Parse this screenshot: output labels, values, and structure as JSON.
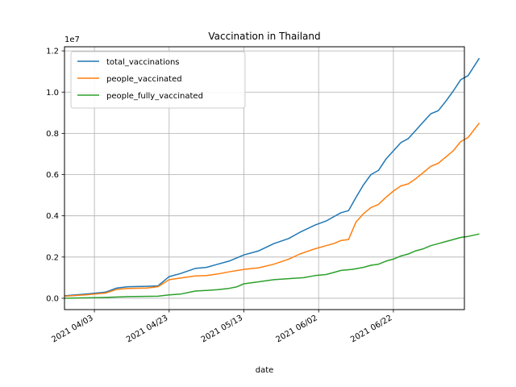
{
  "chart_data": {
    "type": "line",
    "title": "Vaccination in Thailand",
    "xlabel": "date",
    "ylabel": "",
    "y_scale_label": "1e7",
    "x_tick_labels": [
      "2021 04/03",
      "2021 04/23",
      "2021 05/13",
      "2021 06/02",
      "2021 06/22"
    ],
    "y_tick_labels": [
      "0.0",
      "0.2",
      "0.4",
      "0.6",
      "0.8",
      "1.0",
      "1.2"
    ],
    "y_ticks": [
      0,
      2000000,
      4000000,
      6000000,
      8000000,
      10000000,
      12000000
    ],
    "ylim": [
      -550000,
      12200000
    ],
    "xlim": [
      "2021-03-26",
      "2021-07-11"
    ],
    "grid": true,
    "legend_position": "top-left",
    "colors": {
      "total_vaccinations": "#1f77b4",
      "people_vaccinated": "#ff7f0e",
      "people_fully_vaccinated": "#2ca02c"
    },
    "series": [
      {
        "name": "total_vaccinations",
        "points": [
          [
            "2021-03-26",
            120000
          ],
          [
            "2021-04-01",
            210000
          ],
          [
            "2021-04-06",
            300000
          ],
          [
            "2021-04-09",
            500000
          ],
          [
            "2021-04-12",
            560000
          ],
          [
            "2021-04-17",
            580000
          ],
          [
            "2021-04-20",
            600000
          ],
          [
            "2021-04-23",
            1050000
          ],
          [
            "2021-04-26",
            1200000
          ],
          [
            "2021-04-30",
            1450000
          ],
          [
            "2021-05-03",
            1500000
          ],
          [
            "2021-05-06",
            1650000
          ],
          [
            "2021-05-09",
            1800000
          ],
          [
            "2021-05-13",
            2100000
          ],
          [
            "2021-05-17",
            2300000
          ],
          [
            "2021-05-21",
            2650000
          ],
          [
            "2021-05-25",
            2900000
          ],
          [
            "2021-05-28",
            3200000
          ],
          [
            "2021-06-01",
            3550000
          ],
          [
            "2021-06-04",
            3750000
          ],
          [
            "2021-06-06",
            3950000
          ],
          [
            "2021-06-08",
            4150000
          ],
          [
            "2021-06-10",
            4250000
          ],
          [
            "2021-06-12",
            4900000
          ],
          [
            "2021-06-14",
            5500000
          ],
          [
            "2021-06-16",
            6000000
          ],
          [
            "2021-06-18",
            6200000
          ],
          [
            "2021-06-20",
            6750000
          ],
          [
            "2021-06-22",
            7150000
          ],
          [
            "2021-06-24",
            7550000
          ],
          [
            "2021-06-26",
            7750000
          ],
          [
            "2021-06-28",
            8150000
          ],
          [
            "2021-06-30",
            8550000
          ],
          [
            "2021-07-02",
            8950000
          ],
          [
            "2021-07-04",
            9100000
          ],
          [
            "2021-07-06",
            9550000
          ],
          [
            "2021-07-08",
            10050000
          ],
          [
            "2021-07-10",
            10600000
          ],
          [
            "2021-07-12",
            10800000
          ],
          [
            "2021-07-15",
            11650000
          ]
        ]
      },
      {
        "name": "people_vaccinated",
        "points": [
          [
            "2021-03-26",
            100000
          ],
          [
            "2021-04-01",
            170000
          ],
          [
            "2021-04-06",
            250000
          ],
          [
            "2021-04-09",
            430000
          ],
          [
            "2021-04-12",
            480000
          ],
          [
            "2021-04-17",
            500000
          ],
          [
            "2021-04-20",
            560000
          ],
          [
            "2021-04-23",
            900000
          ],
          [
            "2021-04-26",
            980000
          ],
          [
            "2021-04-30",
            1080000
          ],
          [
            "2021-05-03",
            1100000
          ],
          [
            "2021-05-06",
            1180000
          ],
          [
            "2021-05-09",
            1280000
          ],
          [
            "2021-05-13",
            1400000
          ],
          [
            "2021-05-17",
            1480000
          ],
          [
            "2021-05-21",
            1650000
          ],
          [
            "2021-05-25",
            1900000
          ],
          [
            "2021-05-28",
            2150000
          ],
          [
            "2021-06-01",
            2400000
          ],
          [
            "2021-06-04",
            2550000
          ],
          [
            "2021-06-06",
            2650000
          ],
          [
            "2021-06-08",
            2800000
          ],
          [
            "2021-06-10",
            2850000
          ],
          [
            "2021-06-12",
            3700000
          ],
          [
            "2021-06-14",
            4100000
          ],
          [
            "2021-06-16",
            4400000
          ],
          [
            "2021-06-18",
            4550000
          ],
          [
            "2021-06-20",
            4900000
          ],
          [
            "2021-06-22",
            5200000
          ],
          [
            "2021-06-24",
            5450000
          ],
          [
            "2021-06-26",
            5550000
          ],
          [
            "2021-06-28",
            5800000
          ],
          [
            "2021-06-30",
            6100000
          ],
          [
            "2021-07-02",
            6400000
          ],
          [
            "2021-07-04",
            6550000
          ],
          [
            "2021-07-06",
            6850000
          ],
          [
            "2021-07-08",
            7150000
          ],
          [
            "2021-07-10",
            7600000
          ],
          [
            "2021-07-12",
            7800000
          ],
          [
            "2021-07-15",
            8500000
          ]
        ]
      },
      {
        "name": "people_fully_vaccinated",
        "points": [
          [
            "2021-03-26",
            0
          ],
          [
            "2021-04-06",
            40000
          ],
          [
            "2021-04-12",
            80000
          ],
          [
            "2021-04-20",
            100000
          ],
          [
            "2021-04-23",
            160000
          ],
          [
            "2021-04-26",
            200000
          ],
          [
            "2021-04-30",
            350000
          ],
          [
            "2021-05-03",
            380000
          ],
          [
            "2021-05-06",
            420000
          ],
          [
            "2021-05-09",
            480000
          ],
          [
            "2021-05-11",
            550000
          ],
          [
            "2021-05-13",
            700000
          ],
          [
            "2021-05-17",
            800000
          ],
          [
            "2021-05-21",
            900000
          ],
          [
            "2021-05-25",
            950000
          ],
          [
            "2021-05-29",
            1000000
          ],
          [
            "2021-06-01",
            1100000
          ],
          [
            "2021-06-04",
            1150000
          ],
          [
            "2021-06-06",
            1250000
          ],
          [
            "2021-06-08",
            1350000
          ],
          [
            "2021-06-11",
            1400000
          ],
          [
            "2021-06-14",
            1500000
          ],
          [
            "2021-06-16",
            1600000
          ],
          [
            "2021-06-18",
            1650000
          ],
          [
            "2021-06-20",
            1800000
          ],
          [
            "2021-06-22",
            1900000
          ],
          [
            "2021-06-24",
            2050000
          ],
          [
            "2021-06-26",
            2150000
          ],
          [
            "2021-06-28",
            2300000
          ],
          [
            "2021-06-30",
            2400000
          ],
          [
            "2021-07-02",
            2550000
          ],
          [
            "2021-07-04",
            2650000
          ],
          [
            "2021-07-06",
            2750000
          ],
          [
            "2021-07-08",
            2850000
          ],
          [
            "2021-07-10",
            2950000
          ],
          [
            "2021-07-12",
            3000000
          ],
          [
            "2021-07-15",
            3120000
          ]
        ]
      }
    ]
  }
}
